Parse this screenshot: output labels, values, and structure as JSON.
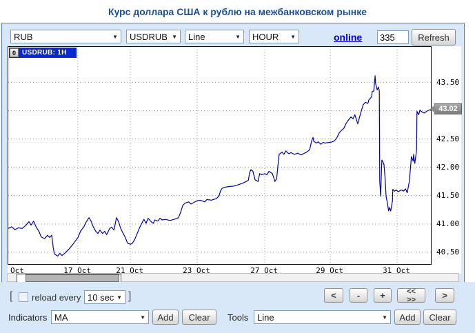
{
  "title": "Курс доллара США к рублю на межбанковском рынке",
  "toolbar": {
    "currency": "RUB",
    "symbol": "USDRUB",
    "chart_type": "Line",
    "period": "HOUR",
    "online_label": "online",
    "points_value": "335",
    "refresh_label": "Refresh"
  },
  "chart": {
    "legend_button": "0",
    "legend": "USDRUB: 1H",
    "current_price": "43.02"
  },
  "chart_data": {
    "type": "line",
    "title": "USDRUB hourly exchange rate",
    "xlabel": "",
    "ylabel": "",
    "ylim": [
      40.29,
      44.13
    ],
    "value_window": [
      40.29,
      44.13
    ],
    "ygrid": [
      40.5,
      41.0,
      41.5,
      42.0,
      42.5,
      43.0,
      43.5
    ],
    "yticks_shown": [
      40.5,
      41.0,
      41.5,
      42.0,
      42.5,
      43.5
    ],
    "last_price": 43.02,
    "grid": true,
    "legend_position": "top-left",
    "xticks": [
      {
        "label": "Oct",
        "f": 0.007,
        "grid": false,
        "align": "left"
      },
      {
        "label": "17 Oct",
        "f": 0.165,
        "grid": true
      },
      {
        "label": "21 Oct",
        "f": 0.289,
        "grid": true
      },
      {
        "label": "23 Oct",
        "f": 0.447,
        "grid": true
      },
      {
        "label": "27 Oct",
        "f": 0.607,
        "grid": true
      },
      {
        "label": "29 Oct",
        "f": 0.762,
        "grid": true
      },
      {
        "label": "31 Oct",
        "f": 0.92,
        "grid": true
      }
    ],
    "series": [
      {
        "name": "USDRUB: 1H",
        "points": [
          [
            0.0,
            40.92
          ],
          [
            0.008,
            40.95
          ],
          [
            0.016,
            40.9
          ],
          [
            0.024,
            40.93
          ],
          [
            0.033,
            40.92
          ],
          [
            0.041,
            40.97
          ],
          [
            0.049,
            41.04
          ],
          [
            0.054,
            40.98
          ],
          [
            0.06,
            41.05
          ],
          [
            0.065,
            40.96
          ],
          [
            0.073,
            40.86
          ],
          [
            0.078,
            40.77
          ],
          [
            0.086,
            40.74
          ],
          [
            0.093,
            40.8
          ],
          [
            0.098,
            40.76
          ],
          [
            0.103,
            40.8
          ],
          [
            0.106,
            40.6
          ],
          [
            0.109,
            40.47
          ],
          [
            0.117,
            40.43
          ],
          [
            0.122,
            40.48
          ],
          [
            0.127,
            40.44
          ],
          [
            0.135,
            40.49
          ],
          [
            0.144,
            40.56
          ],
          [
            0.152,
            40.63
          ],
          [
            0.158,
            40.69
          ],
          [
            0.165,
            40.76
          ],
          [
            0.171,
            40.87
          ],
          [
            0.179,
            40.95
          ],
          [
            0.184,
            41.03
          ],
          [
            0.191,
            41.11
          ],
          [
            0.196,
            41.05
          ],
          [
            0.201,
            40.95
          ],
          [
            0.207,
            40.87
          ],
          [
            0.212,
            40.83
          ],
          [
            0.217,
            40.89
          ],
          [
            0.223,
            40.83
          ],
          [
            0.228,
            40.87
          ],
          [
            0.233,
            40.81
          ],
          [
            0.24,
            40.92
          ],
          [
            0.245,
            40.94
          ],
          [
            0.25,
            40.89
          ],
          [
            0.256,
            41.11
          ],
          [
            0.261,
            41.04
          ],
          [
            0.266,
            40.92
          ],
          [
            0.272,
            40.83
          ],
          [
            0.277,
            40.76
          ],
          [
            0.282,
            40.66
          ],
          [
            0.289,
            40.64
          ],
          [
            0.294,
            40.66
          ],
          [
            0.299,
            40.72
          ],
          [
            0.305,
            40.83
          ],
          [
            0.31,
            40.92
          ],
          [
            0.315,
            41.0
          ],
          [
            0.321,
            41.08
          ],
          [
            0.326,
            41.01
          ],
          [
            0.331,
            41.1
          ],
          [
            0.338,
            41.04
          ],
          [
            0.343,
            41.01
          ],
          [
            0.347,
            41.07
          ],
          [
            0.354,
            41.05
          ],
          [
            0.359,
            41.1
          ],
          [
            0.364,
            41.07
          ],
          [
            0.372,
            41.08
          ],
          [
            0.383,
            41.06
          ],
          [
            0.392,
            41.08
          ],
          [
            0.4,
            41.1
          ],
          [
            0.403,
            41.11
          ],
          [
            0.408,
            41.21
          ],
          [
            0.413,
            41.33
          ],
          [
            0.419,
            41.37
          ],
          [
            0.427,
            41.39
          ],
          [
            0.432,
            41.35
          ],
          [
            0.437,
            41.37
          ],
          [
            0.447,
            41.41
          ],
          [
            0.454,
            41.42
          ],
          [
            0.465,
            41.39
          ],
          [
            0.47,
            41.43
          ],
          [
            0.481,
            41.42
          ],
          [
            0.493,
            41.45
          ],
          [
            0.499,
            41.5
          ],
          [
            0.502,
            41.58
          ],
          [
            0.506,
            41.63
          ],
          [
            0.514,
            41.65
          ],
          [
            0.522,
            41.66
          ],
          [
            0.535,
            41.67
          ],
          [
            0.543,
            41.69
          ],
          [
            0.555,
            41.72
          ],
          [
            0.568,
            41.77
          ],
          [
            0.571,
            41.9
          ],
          [
            0.574,
            41.96
          ],
          [
            0.579,
            41.93
          ],
          [
            0.584,
            41.78
          ],
          [
            0.591,
            41.75
          ],
          [
            0.595,
            41.89
          ],
          [
            0.6,
            41.87
          ],
          [
            0.607,
            41.89
          ],
          [
            0.612,
            41.87
          ],
          [
            0.617,
            41.93
          ],
          [
            0.625,
            41.89
          ],
          [
            0.631,
            41.75
          ],
          [
            0.635,
            41.8
          ],
          [
            0.64,
            42.17
          ],
          [
            0.641,
            42.23
          ],
          [
            0.648,
            42.27
          ],
          [
            0.652,
            42.23
          ],
          [
            0.657,
            42.29
          ],
          [
            0.664,
            42.24
          ],
          [
            0.669,
            42.26
          ],
          [
            0.677,
            42.23
          ],
          [
            0.685,
            42.25
          ],
          [
            0.693,
            42.22
          ],
          [
            0.701,
            42.25
          ],
          [
            0.706,
            42.27
          ],
          [
            0.713,
            42.31
          ],
          [
            0.718,
            42.47
          ],
          [
            0.721,
            42.53
          ],
          [
            0.723,
            42.46
          ],
          [
            0.729,
            42.43
          ],
          [
            0.734,
            42.45
          ],
          [
            0.739,
            42.41
          ],
          [
            0.745,
            42.44
          ],
          [
            0.75,
            42.43
          ],
          [
            0.758,
            42.44
          ],
          [
            0.767,
            42.45
          ],
          [
            0.772,
            42.47
          ],
          [
            0.778,
            42.53
          ],
          [
            0.783,
            42.61
          ],
          [
            0.788,
            42.65
          ],
          [
            0.794,
            42.69
          ],
          [
            0.799,
            42.77
          ],
          [
            0.804,
            42.83
          ],
          [
            0.811,
            42.89
          ],
          [
            0.816,
            42.86
          ],
          [
            0.82,
            42.93
          ],
          [
            0.827,
            42.77
          ],
          [
            0.829,
            42.83
          ],
          [
            0.835,
            42.99
          ],
          [
            0.84,
            43.11
          ],
          [
            0.845,
            43.15
          ],
          [
            0.851,
            43.13
          ],
          [
            0.853,
            43.19
          ],
          [
            0.86,
            43.25
          ],
          [
            0.861,
            43.34
          ],
          [
            0.865,
            43.35
          ],
          [
            0.868,
            43.62
          ],
          [
            0.869,
            43.49
          ],
          [
            0.873,
            43.37
          ],
          [
            0.876,
            43.42
          ],
          [
            0.878,
            43.35
          ],
          [
            0.879,
            41.77
          ],
          [
            0.881,
            41.49
          ],
          [
            0.884,
            42.13
          ],
          [
            0.886,
            42.11
          ],
          [
            0.889,
            42.05
          ],
          [
            0.892,
            41.77
          ],
          [
            0.894,
            41.49
          ],
          [
            0.897,
            41.37
          ],
          [
            0.9,
            41.23
          ],
          [
            0.902,
            41.29
          ],
          [
            0.905,
            41.23
          ],
          [
            0.909,
            41.4
          ],
          [
            0.91,
            41.61
          ],
          [
            0.914,
            41.58
          ],
          [
            0.918,
            41.6
          ],
          [
            0.923,
            41.57
          ],
          [
            0.93,
            41.6
          ],
          [
            0.935,
            41.58
          ],
          [
            0.94,
            41.62
          ],
          [
            0.944,
            41.55
          ],
          [
            0.949,
            41.75
          ],
          [
            0.954,
            42.19
          ],
          [
            0.958,
            42.11
          ],
          [
            0.959,
            42.23
          ],
          [
            0.962,
            42.07
          ],
          [
            0.966,
            42.3
          ],
          [
            0.967,
            42.99
          ],
          [
            0.971,
            42.93
          ],
          [
            0.974,
            43.01
          ],
          [
            0.979,
            42.98
          ],
          [
            0.984,
            42.96
          ],
          [
            0.99,
            42.99
          ],
          [
            0.995,
            43.01
          ],
          [
            1.0,
            43.02
          ]
        ]
      }
    ]
  },
  "controls": {
    "bracket_left": "[",
    "bracket_right": "]",
    "reload_label": "reload every",
    "reload_interval": "10 sec",
    "nav": {
      "back": "<",
      "zoom_out": "-",
      "zoom_in": "+",
      "span": "<< >>",
      "forward": ">"
    }
  },
  "bottom": {
    "indicators_label": "Indicators",
    "indicator_value": "MA",
    "tools_label": "Tools",
    "tool_value": "Line",
    "add_label": "Add",
    "clear_label": "Clear"
  }
}
